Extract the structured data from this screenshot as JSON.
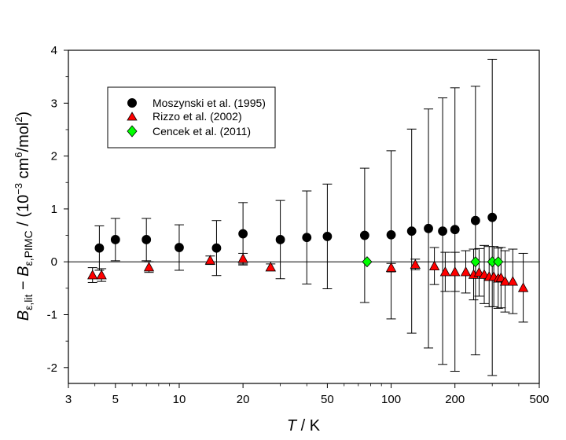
{
  "chart_data": {
    "type": "scatter",
    "x_scale": "log",
    "xlim": [
      3,
      500
    ],
    "ylim": [
      -2.3,
      4
    ],
    "xticks": [
      3,
      5,
      10,
      20,
      50,
      100,
      200,
      500
    ],
    "xtick_labels": [
      "3",
      "5",
      "10",
      "20",
      "50",
      "100",
      "200",
      "500"
    ],
    "yticks": [
      -2,
      -1,
      0,
      1,
      2,
      3,
      4
    ],
    "ytick_labels": [
      "-2",
      "-1",
      "0",
      "1",
      "2",
      "3",
      "4"
    ],
    "xlabel": {
      "symbol": "T",
      "rest": " / K"
    },
    "ylabel": {
      "B1": "B",
      "sub1": "ε,lit",
      "minus": " − ",
      "B2": "B",
      "sub2": "ε,PIMC",
      "unit_open": " / (10",
      "exp1": "−3",
      "unit_mid": " cm",
      "exp2": "6",
      "unit_mid2": "/mol",
      "exp3": "2",
      "unit_close": ")"
    },
    "zero_line": 0,
    "series": [
      {
        "name": "Moszynski et al. (1995)",
        "marker": "circle",
        "color": "#000000",
        "points": [
          {
            "x": 4.2,
            "y": 0.26,
            "err": 0.42
          },
          {
            "x": 5,
            "y": 0.42,
            "err": 0.4
          },
          {
            "x": 7,
            "y": 0.42,
            "err": 0.4
          },
          {
            "x": 10,
            "y": 0.27,
            "err": 0.43
          },
          {
            "x": 15,
            "y": 0.26,
            "err": 0.52
          },
          {
            "x": 20,
            "y": 0.53,
            "err": 0.59
          },
          {
            "x": 30,
            "y": 0.42,
            "err": 0.74
          },
          {
            "x": 40,
            "y": 0.46,
            "err": 0.88
          },
          {
            "x": 50,
            "y": 0.48,
            "err": 0.99
          },
          {
            "x": 75,
            "y": 0.5,
            "err": 1.27
          },
          {
            "x": 100,
            "y": 0.51,
            "err": 1.59
          },
          {
            "x": 125,
            "y": 0.58,
            "err": 1.93
          },
          {
            "x": 150,
            "y": 0.63,
            "err": 2.26
          },
          {
            "x": 175,
            "y": 0.58,
            "err": 2.52
          },
          {
            "x": 200,
            "y": 0.61,
            "err": 2.68
          },
          {
            "x": 250,
            "y": 0.78,
            "err": 2.54
          },
          {
            "x": 300,
            "y": 0.84,
            "err": 2.99
          }
        ]
      },
      {
        "name": "Rizzo et al. (2002)",
        "marker": "triangle",
        "color": "#ff0000",
        "points": [
          {
            "x": 3.9,
            "y": -0.25,
            "err": 0.14
          },
          {
            "x": 4.3,
            "y": -0.25,
            "err": 0.12
          },
          {
            "x": 7.2,
            "y": -0.1,
            "err": 0.1
          },
          {
            "x": 14,
            "y": 0.03,
            "err": 0.08
          },
          {
            "x": 20,
            "y": 0.06,
            "err": 0.1
          },
          {
            "x": 27,
            "y": -0.1,
            "err": 0.06
          },
          {
            "x": 100,
            "y": -0.11,
            "err": 0.08
          },
          {
            "x": 130,
            "y": -0.05,
            "err": 0.1
          },
          {
            "x": 160,
            "y": -0.08,
            "err": 0.35
          },
          {
            "x": 180,
            "y": -0.19,
            "err": 0.37
          },
          {
            "x": 200,
            "y": -0.19,
            "err": 0.37
          },
          {
            "x": 225,
            "y": -0.19,
            "err": 0.4
          },
          {
            "x": 245,
            "y": -0.24,
            "err": 0.48
          },
          {
            "x": 260,
            "y": -0.2,
            "err": 0.45
          },
          {
            "x": 275,
            "y": -0.24,
            "err": 0.55
          },
          {
            "x": 290,
            "y": -0.28,
            "err": 0.57
          },
          {
            "x": 305,
            "y": -0.28,
            "err": 0.57
          },
          {
            "x": 320,
            "y": -0.31,
            "err": 0.57
          },
          {
            "x": 330,
            "y": -0.3,
            "err": 0.57
          },
          {
            "x": 345,
            "y": -0.37,
            "err": 0.58
          },
          {
            "x": 375,
            "y": -0.37,
            "err": 0.61
          },
          {
            "x": 420,
            "y": -0.49,
            "err": 0.65
          }
        ]
      },
      {
        "name": "Cencek et al. (2011)",
        "marker": "diamond",
        "color": "#00ff00",
        "points": [
          {
            "x": 77,
            "y": 0.0,
            "err": 0
          },
          {
            "x": 250,
            "y": 0.0,
            "err": 0
          },
          {
            "x": 300,
            "y": 0.0,
            "err": 0
          },
          {
            "x": 320,
            "y": 0.0,
            "err": 0
          }
        ]
      }
    ]
  }
}
